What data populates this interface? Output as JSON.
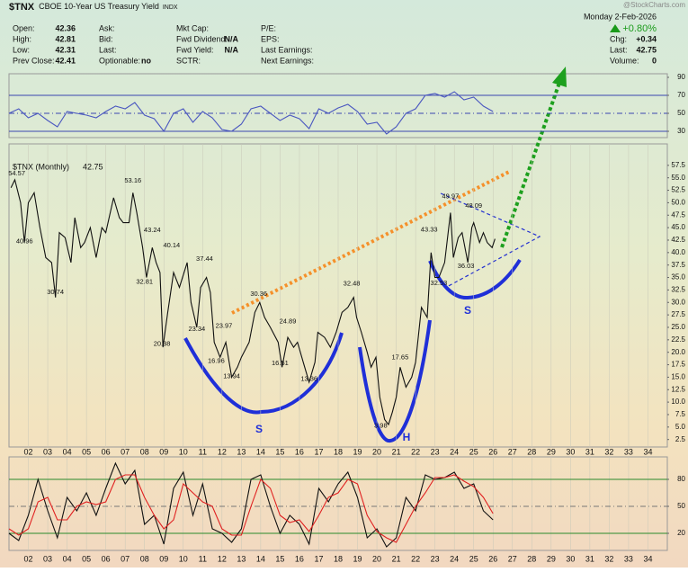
{
  "header": {
    "symbol": "$TNX",
    "name": "CBOE 10-Year US Treasury Yield",
    "exchange": "INDX",
    "watermark": "@StockCharts.com",
    "date": "Monday  2-Feb-2026",
    "change_pct": "+0.80%",
    "fields": [
      [
        {
          "label": "Open:",
          "value": 42.36
        },
        {
          "label": "High:",
          "value": 42.81
        },
        {
          "label": "Low:",
          "value": 42.31
        },
        {
          "label": "Prev Close:",
          "value": 42.41
        }
      ],
      [
        {
          "label": "Ask:"
        },
        {
          "label": "Bid:"
        },
        {
          "label": "Last:"
        },
        {
          "label": "Optionable:",
          "value": "no"
        }
      ],
      [
        {
          "label": "Mkt Cap:"
        },
        {
          "label": "Fwd Dividend:",
          "value": "N/A"
        },
        {
          "label": "Fwd Yield:",
          "value": "N/A"
        },
        {
          "label": "SCTR:"
        }
      ],
      [
        {
          "label": "P/E:"
        },
        {
          "label": "EPS:"
        },
        {
          "label": "Last Earnings:"
        },
        {
          "label": "Next Earnings:"
        }
      ]
    ],
    "right_fields": [
      {
        "label": "Chg:",
        "value": "+0.34"
      },
      {
        "label": "Last:",
        "value": 42.75
      },
      {
        "label": "Volume:",
        "value": 0
      }
    ]
  },
  "chart_data": [
    {
      "type": "line",
      "xlim": [
        2001,
        2035
      ],
      "ylim": [
        23,
        94
      ],
      "yticks": [
        30,
        50,
        70,
        90
      ],
      "levels": [
        {
          "value": 70,
          "color": "#3a46b0",
          "dash": "none"
        },
        {
          "value": 50,
          "color": "#3a46b0",
          "dash": "6 3 1 3"
        },
        {
          "value": 30,
          "color": "#3a46b0",
          "dash": "none"
        }
      ],
      "x": [
        2001,
        2001.5,
        2002,
        2002.5,
        2003,
        2003.5,
        2004,
        2004.5,
        2005,
        2005.5,
        2006,
        2006.5,
        2007,
        2007.5,
        2008,
        2008.5,
        2009,
        2009.5,
        2010,
        2010.5,
        2011,
        2011.5,
        2012,
        2012.5,
        2013,
        2013.5,
        2014,
        2014.5,
        2015,
        2015.5,
        2016,
        2016.5,
        2017,
        2017.5,
        2018,
        2018.5,
        2019,
        2019.5,
        2020,
        2020.5,
        2021,
        2021.5,
        2022,
        2022.5,
        2023,
        2023.5,
        2024,
        2024.5,
        2025,
        2025.5,
        2026
      ],
      "series": [
        {
          "color": "#4a57c0",
          "values": [
            50,
            55,
            45,
            50,
            42,
            35,
            52,
            50,
            48,
            45,
            52,
            58,
            55,
            62,
            48,
            44,
            30,
            50,
            55,
            40,
            52,
            45,
            32,
            30,
            38,
            55,
            58,
            50,
            42,
            48,
            44,
            33,
            55,
            50,
            56,
            60,
            52,
            38,
            40,
            27,
            35,
            50,
            55,
            70,
            72,
            68,
            74,
            65,
            68,
            58,
            52
          ]
        }
      ]
    },
    {
      "type": "line",
      "xlim": [
        2001,
        2035
      ],
      "ylim": [
        1,
        61.8
      ],
      "last": 42.75,
      "yticks": [
        2.5,
        {
          "value": 5,
          "label": "5.0"
        },
        7.5,
        {
          "value": 10,
          "label": "10.0"
        },
        12.5,
        {
          "value": 15,
          "label": "15.0"
        },
        17.5,
        {
          "value": 20,
          "label": "20.0"
        },
        22.5,
        {
          "value": 25,
          "label": "25.0"
        },
        27.5,
        {
          "value": 30,
          "label": "30.0"
        },
        32.5,
        {
          "value": 35,
          "label": "35.0"
        },
        37.5,
        {
          "value": 40,
          "label": "40.0"
        },
        42.5,
        {
          "value": 45,
          "label": "45.0"
        },
        47.5,
        {
          "value": 50,
          "label": "50.0"
        },
        52.5,
        {
          "value": 55,
          "label": "55.0"
        },
        57.5
      ],
      "xticks": [
        {
          "value": 2002,
          "label": "02"
        },
        {
          "value": 2003,
          "label": "03"
        },
        {
          "value": 2004,
          "label": "04"
        },
        {
          "value": 2005,
          "label": "05"
        },
        {
          "value": 2006,
          "label": "06"
        },
        {
          "value": 2007,
          "label": "07"
        },
        {
          "value": 2008,
          "label": "08"
        },
        {
          "value": 2009,
          "label": "09"
        },
        {
          "value": 2010,
          "label": "10"
        },
        {
          "value": 2011,
          "label": "11"
        },
        {
          "value": 2012,
          "label": "12"
        },
        {
          "value": 2013,
          "label": "13"
        },
        {
          "value": 2014,
          "label": "14"
        },
        {
          "value": 2015,
          "label": "15"
        },
        {
          "value": 2016,
          "label": "16"
        },
        {
          "value": 2017,
          "label": "17"
        },
        {
          "value": 2018,
          "label": "18"
        },
        {
          "value": 2019,
          "label": "19"
        },
        {
          "value": 2020,
          "label": "20"
        },
        {
          "value": 2021,
          "label": "21"
        },
        {
          "value": 2022,
          "label": "22"
        },
        {
          "value": 2023,
          "label": "23"
        },
        {
          "value": 2024,
          "label": "24"
        },
        {
          "value": 2025,
          "label": "25"
        },
        {
          "value": 2026,
          "label": "26"
        },
        {
          "value": 2027,
          "label": "27"
        },
        {
          "value": 2028,
          "label": "28"
        },
        {
          "value": 2029,
          "label": "29"
        },
        {
          "value": 2030,
          "label": "30"
        },
        {
          "value": 2031,
          "label": "31"
        },
        {
          "value": 2032,
          "label": "32"
        },
        {
          "value": 2033,
          "label": "33"
        },
        {
          "value": 2034,
          "label": "34"
        }
      ],
      "x": [
        2001.1,
        2001.3,
        2001.6,
        2001.8,
        2002.0,
        2002.3,
        2002.6,
        2002.9,
        2003.2,
        2003.4,
        2003.6,
        2003.9,
        2004.2,
        2004.4,
        2004.7,
        2004.9,
        2005.2,
        2005.5,
        2005.8,
        2006.0,
        2006.4,
        2006.7,
        2006.9,
        2007.2,
        2007.4,
        2007.6,
        2007.9,
        2008.1,
        2008.4,
        2008.6,
        2008.8,
        2008.95,
        2009.2,
        2009.5,
        2009.8,
        2010.2,
        2010.4,
        2010.7,
        2010.9,
        2011.2,
        2011.4,
        2011.6,
        2011.9,
        2012.2,
        2012.5,
        2012.8,
        2013.0,
        2013.4,
        2013.7,
        2013.95,
        2014.2,
        2014.5,
        2014.9,
        2015.1,
        2015.4,
        2015.7,
        2015.9,
        2016.2,
        2016.5,
        2016.8,
        2016.95,
        2017.3,
        2017.6,
        2017.9,
        2018.2,
        2018.5,
        2018.8,
        2018.95,
        2019.2,
        2019.5,
        2019.7,
        2019.95,
        2020.15,
        2020.4,
        2020.6,
        2020.8,
        2021.0,
        2021.2,
        2021.5,
        2021.8,
        2022.0,
        2022.3,
        2022.6,
        2022.8,
        2023.0,
        2023.2,
        2023.5,
        2023.8,
        2023.95,
        2024.2,
        2024.4,
        2024.7,
        2024.9,
        2025.0,
        2025.3,
        2025.5,
        2025.7,
        2025.95,
        2026.1
      ],
      "series": [
        {
          "name": "$TNX (Monthly)",
          "color": "#111111",
          "values": [
            53,
            54.6,
            50,
            42,
            50,
            52,
            45,
            39,
            38,
            31,
            44,
            43,
            38,
            47,
            41,
            42,
            45,
            39,
            45,
            44,
            51,
            47,
            46,
            46,
            52,
            48,
            41,
            35,
            41,
            38,
            36,
            21,
            28,
            36,
            33,
            38,
            30,
            25,
            33,
            35,
            32,
            22,
            19,
            22,
            15,
            17,
            19,
            22,
            28,
            30,
            27,
            25,
            22,
            17,
            23,
            21,
            22,
            18,
            14,
            18,
            24,
            23,
            21,
            24,
            28,
            29,
            31,
            27,
            24,
            20,
            17,
            19,
            11,
            6.5,
            5.5,
            8,
            11,
            17,
            13,
            15,
            18,
            29,
            27,
            40,
            35,
            35,
            38,
            48,
            39,
            43,
            44,
            38,
            45,
            46,
            42,
            44,
            42,
            41,
            42.75
          ]
        }
      ],
      "price_labels": [
        {
          "x": 2001.4,
          "value": 54.57
        },
        {
          "x": 2001.8,
          "value": 40.96
        },
        {
          "x": 2003.4,
          "value": 30.74
        },
        {
          "x": 2007.4,
          "value": 53.16
        },
        {
          "x": 2008.4,
          "value": 43.24
        },
        {
          "x": 2008.0,
          "value": 32.81
        },
        {
          "x": 2009.4,
          "value": 40.14
        },
        {
          "x": 2008.9,
          "value": 20.38
        },
        {
          "x": 2011.1,
          "value": 37.44
        },
        {
          "x": 2010.7,
          "value": 23.34
        },
        {
          "x": 2011.7,
          "value": 16.96
        },
        {
          "x": 2012.1,
          "value": 23.97
        },
        {
          "x": 2012.5,
          "value": 13.94
        },
        {
          "x": 2013.9,
          "value": 30.36
        },
        {
          "x": 2015.4,
          "value": 24.89
        },
        {
          "x": 2015.0,
          "value": 16.51
        },
        {
          "x": 2016.5,
          "value": 13.36
        },
        {
          "x": 2018.7,
          "value": 32.48
        },
        {
          "x": 2021.2,
          "value": 17.65
        },
        {
          "x": 2020.2,
          "value": 3.98
        },
        {
          "x": 2022.7,
          "value": 43.33
        },
        {
          "x": 2023.8,
          "value": 49.97
        },
        {
          "x": 2025.0,
          "value": 48.09
        },
        {
          "x": 2023.2,
          "value": 32.53
        },
        {
          "x": 2024.6,
          "value": 36.03
        }
      ],
      "pattern_labels": [
        "S",
        "H",
        "S"
      ]
    },
    {
      "type": "line",
      "xlim": [
        2001,
        2035
      ],
      "ylim": [
        1,
        105
      ],
      "yticks": [
        20,
        50,
        80
      ],
      "levels": [
        {
          "value": 80,
          "color": "#2a8a2a",
          "dash": "none"
        },
        {
          "value": 50,
          "color": "#777777",
          "dash": "6 3 1 3"
        },
        {
          "value": 20,
          "color": "#2a8a2a",
          "dash": "none"
        }
      ],
      "xticks": [
        {
          "value": 2002,
          "label": "02"
        },
        {
          "value": 2003,
          "label": "03"
        },
        {
          "value": 2004,
          "label": "04"
        },
        {
          "value": 2005,
          "label": "05"
        },
        {
          "value": 2006,
          "label": "06"
        },
        {
          "value": 2007,
          "label": "07"
        },
        {
          "value": 2008,
          "label": "08"
        },
        {
          "value": 2009,
          "label": "09"
        },
        {
          "value": 2010,
          "label": "10"
        },
        {
          "value": 2011,
          "label": "11"
        },
        {
          "value": 2012,
          "label": "12"
        },
        {
          "value": 2013,
          "label": "13"
        },
        {
          "value": 2014,
          "label": "14"
        },
        {
          "value": 2015,
          "label": "15"
        },
        {
          "value": 2016,
          "label": "16"
        },
        {
          "value": 2017,
          "label": "17"
        },
        {
          "value": 2018,
          "label": "18"
        },
        {
          "value": 2019,
          "label": "19"
        },
        {
          "value": 2020,
          "label": "20"
        },
        {
          "value": 2021,
          "label": "21"
        },
        {
          "value": 2022,
          "label": "22"
        },
        {
          "value": 2023,
          "label": "23"
        },
        {
          "value": 2024,
          "label": "24"
        },
        {
          "value": 2025,
          "label": "25"
        },
        {
          "value": 2026,
          "label": "26"
        },
        {
          "value": 2027,
          "label": "27"
        },
        {
          "value": 2028,
          "label": "28"
        },
        {
          "value": 2029,
          "label": "29"
        },
        {
          "value": 2030,
          "label": "30"
        },
        {
          "value": 2031,
          "label": "31"
        },
        {
          "value": 2032,
          "label": "32"
        },
        {
          "value": 2033,
          "label": "33"
        },
        {
          "value": 2034,
          "label": "34"
        }
      ],
      "x": [
        2001,
        2001.5,
        2002,
        2002.5,
        2003,
        2003.5,
        2004,
        2004.5,
        2005,
        2005.5,
        2006,
        2006.5,
        2007,
        2007.5,
        2008,
        2008.5,
        2009,
        2009.5,
        2010,
        2010.5,
        2011,
        2011.5,
        2012,
        2012.5,
        2013,
        2013.5,
        2014,
        2014.5,
        2015,
        2015.5,
        2016,
        2016.5,
        2017,
        2017.5,
        2018,
        2018.5,
        2019,
        2019.5,
        2020,
        2020.5,
        2021,
        2021.5,
        2022,
        2022.5,
        2023,
        2023.5,
        2024,
        2024.5,
        2025,
        2025.5,
        2026
      ],
      "series": [
        {
          "color": "#111111",
          "values": [
            20,
            12,
            40,
            80,
            45,
            15,
            60,
            45,
            65,
            40,
            70,
            98,
            75,
            90,
            30,
            40,
            8,
            70,
            88,
            40,
            75,
            25,
            20,
            10,
            25,
            80,
            85,
            50,
            20,
            40,
            30,
            8,
            70,
            55,
            75,
            88,
            60,
            15,
            25,
            5,
            15,
            60,
            45,
            85,
            80,
            82,
            88,
            70,
            75,
            45,
            35
          ]
        },
        {
          "color": "#e02020",
          "values": [
            25,
            18,
            25,
            55,
            60,
            35,
            35,
            50,
            55,
            52,
            55,
            80,
            85,
            85,
            60,
            40,
            25,
            35,
            75,
            65,
            55,
            50,
            25,
            18,
            18,
            50,
            80,
            70,
            40,
            32,
            35,
            22,
            40,
            60,
            65,
            80,
            75,
            40,
            22,
            15,
            10,
            30,
            50,
            65,
            82,
            82,
            85,
            78,
            72,
            60,
            42
          ]
        }
      ]
    }
  ]
}
